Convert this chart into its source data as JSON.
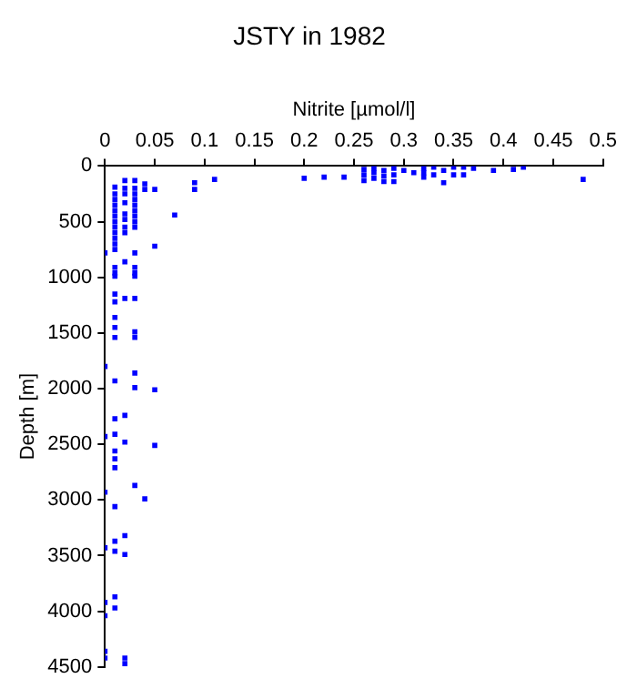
{
  "chart_data": {
    "type": "scatter",
    "title": "JSTY in 1982",
    "xlabel": "Nitrite [µmol/l]",
    "ylabel": "Depth [m]",
    "marker": "square",
    "grid": false,
    "legend": false,
    "xlim": [
      0,
      0.5
    ],
    "xticks": [
      0,
      0.05,
      0.1,
      0.15,
      0.2,
      0.25,
      0.3,
      0.35,
      0.4,
      0.45,
      0.5
    ],
    "ylim": [
      4500,
      0
    ],
    "yticks": [
      0,
      500,
      1000,
      1500,
      2000,
      2500,
      3000,
      3500,
      4000,
      4500
    ],
    "series": [
      {
        "color": "#0000ff",
        "x": [
          0,
          0,
          0,
          0,
          0,
          0,
          0,
          0,
          0,
          0.01,
          0.01,
          0.01,
          0.01,
          0.01,
          0.01,
          0.01,
          0.01,
          0.01,
          0.01,
          0.01,
          0.01,
          0.01,
          0.01,
          0.01,
          0.01,
          0.01,
          0.01,
          0.01,
          0.01,
          0.01,
          0.01,
          0.01,
          0.01,
          0.01,
          0.01,
          0.01,
          0.01,
          0.01,
          0.01,
          0.01,
          0.02,
          0.02,
          0.02,
          0.02,
          0.02,
          0.02,
          0.02,
          0.02,
          0.02,
          0.02,
          0.02,
          0.02,
          0.02,
          0.02,
          0.02,
          0.02,
          0.03,
          0.03,
          0.03,
          0.03,
          0.03,
          0.03,
          0.03,
          0.03,
          0.03,
          0.03,
          0.03,
          0.03,
          0.03,
          0.03,
          0.03,
          0.03,
          0.03,
          0.03,
          0.03,
          0.04,
          0.04,
          0.04,
          0.05,
          0.05,
          0.05,
          0.05,
          0.07,
          0.09,
          0.09,
          0.11,
          0.2,
          0.22,
          0.24,
          0.26,
          0.26,
          0.26,
          0.27,
          0.27,
          0.27,
          0.28,
          0.28,
          0.28,
          0.29,
          0.29,
          0.29,
          0.3,
          0.31,
          0.32,
          0.32,
          0.32,
          0.33,
          0.33,
          0.34,
          0.34,
          0.35,
          0.35,
          0.36,
          0.36,
          0.37,
          0.39,
          0.41,
          0.42,
          0.48
        ],
        "values": [
          780,
          1800,
          2430,
          2930,
          3430,
          3920,
          4040,
          4360,
          4420,
          190,
          250,
          300,
          350,
          400,
          450,
          500,
          550,
          600,
          650,
          700,
          750,
          910,
          960,
          990,
          1150,
          1220,
          1360,
          1450,
          1540,
          1930,
          2270,
          2410,
          2560,
          2630,
          2710,
          3060,
          3370,
          3460,
          3870,
          3970,
          130,
          200,
          250,
          330,
          430,
          480,
          550,
          600,
          860,
          1190,
          2240,
          2480,
          3320,
          3490,
          4420,
          4470,
          130,
          200,
          250,
          300,
          350,
          400,
          450,
          500,
          550,
          780,
          910,
          960,
          990,
          1190,
          1490,
          1540,
          1860,
          1990,
          2870,
          160,
          210,
          2990,
          210,
          720,
          2010,
          2510,
          440,
          150,
          210,
          120,
          110,
          100,
          100,
          30,
          80,
          130,
          20,
          60,
          110,
          40,
          90,
          140,
          20,
          80,
          140,
          40,
          60,
          20,
          60,
          100,
          10,
          80,
          40,
          150,
          10,
          80,
          10,
          80,
          20,
          40,
          30,
          10,
          120
        ]
      }
    ]
  }
}
